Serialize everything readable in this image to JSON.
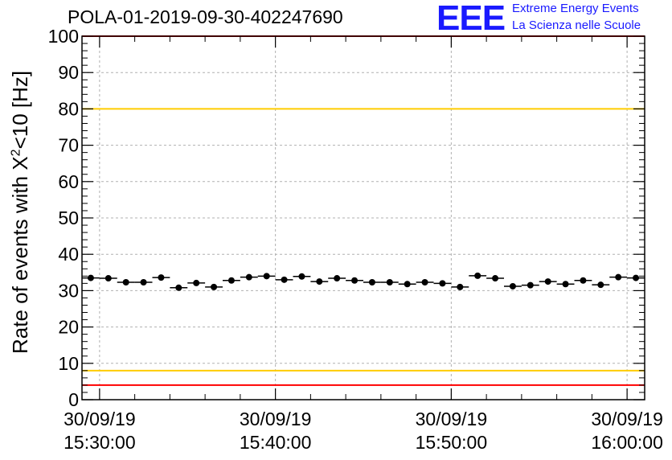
{
  "header": {
    "title": "POLA-01-2019-09-30-402247690",
    "logo_text": "EEE",
    "logo_line1": "Extreme Energy Events",
    "logo_line2": "La Scienza nelle Scuole"
  },
  "chart_data": {
    "type": "scatter",
    "title": "POLA-01-2019-09-30-402247690",
    "ylabel_prefix": "Rate of events with X",
    "ylabel_sup": "2",
    "ylabel_suffix": "<10 [Hz]",
    "ylim": [
      0,
      100
    ],
    "y_ticks": [
      0,
      10,
      20,
      30,
      40,
      50,
      60,
      70,
      80,
      90,
      100
    ],
    "x_range_minutes": [
      -1,
      31
    ],
    "x_ticks": [
      {
        "minute": 0,
        "date": "30/09/19",
        "time": "15:30:00"
      },
      {
        "minute": 10,
        "date": "30/09/19",
        "time": "15:40:00"
      },
      {
        "minute": 20,
        "date": "30/09/19",
        "time": "15:50:00"
      },
      {
        "minute": 30,
        "date": "30/09/19",
        "time": "16:00:00"
      }
    ],
    "grid": true,
    "reference_lines": [
      {
        "value": 100,
        "color": "#ff0000"
      },
      {
        "value": 80,
        "color": "#ffcc00"
      },
      {
        "value": 8,
        "color": "#ffcc00"
      },
      {
        "value": 4,
        "color": "#ff0000"
      }
    ],
    "series": [
      {
        "name": "rate",
        "color": "#000000",
        "bin_width_minutes": 1,
        "x_minutes": [
          -0.5,
          0.5,
          1.5,
          2.5,
          3.5,
          4.5,
          5.5,
          6.5,
          7.5,
          8.5,
          9.5,
          10.5,
          11.5,
          12.5,
          13.5,
          14.5,
          15.5,
          16.5,
          17.5,
          18.5,
          19.5,
          20.5,
          21.5,
          22.5,
          23.5,
          24.5,
          25.5,
          26.5,
          27.5,
          28.5,
          29.5,
          30.5
        ],
        "values": [
          33.5,
          33.4,
          32.3,
          32.3,
          33.6,
          30.8,
          32.1,
          31.0,
          32.8,
          33.7,
          34.0,
          33.0,
          33.9,
          32.5,
          33.4,
          32.8,
          32.3,
          32.3,
          31.8,
          32.3,
          32.0,
          31.0,
          34.1,
          33.4,
          31.2,
          31.5,
          32.5,
          31.8,
          32.8,
          31.6,
          33.7,
          33.5
        ]
      }
    ]
  }
}
